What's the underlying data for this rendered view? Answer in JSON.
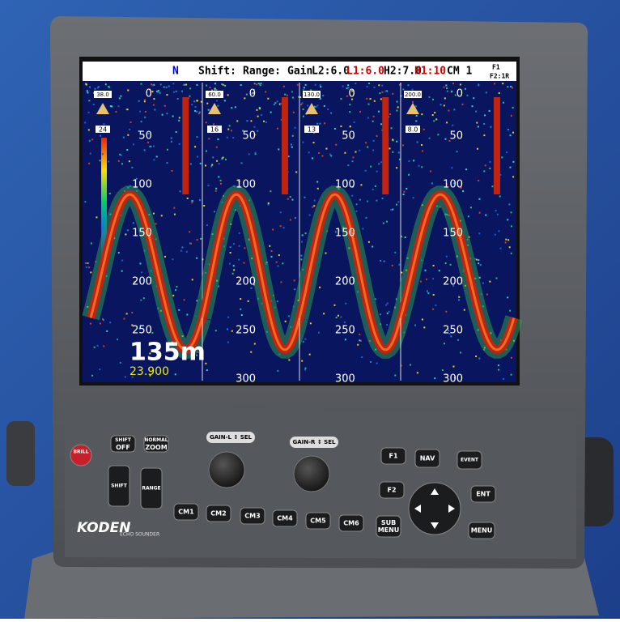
{
  "screen": {
    "header": {
      "mode": "N",
      "shift": "Shift:",
      "range": "Range:",
      "gain": "Gain",
      "l2": "L2:6.0",
      "l1": "L1:6.0",
      "h2": "H2:7.0",
      "h1": "H1:10",
      "cm": "CM 1",
      "f1": "F1",
      "f2": "F2:1R"
    },
    "panels": [
      {
        "range": "38.0",
        "speed": "24",
        "depths": [
          "0",
          "50",
          "100",
          "150",
          "200",
          "250"
        ]
      },
      {
        "range": "60.0",
        "speed": "16",
        "depths": [
          "0",
          "50",
          "100",
          "200",
          "250",
          "300"
        ]
      },
      {
        "range": "130.0",
        "speed": "13",
        "depths": [
          "0",
          "50",
          "100",
          "150",
          "200",
          "250",
          "300"
        ]
      },
      {
        "range": "200.0",
        "speed": "8.0",
        "depths": [
          "0",
          "50",
          "100",
          "150",
          "200",
          "250",
          "300"
        ]
      }
    ],
    "readout": {
      "depth": "135m",
      "position": "23.900"
    }
  },
  "controls": {
    "buttons": [
      [
        "BRILL"
      ],
      [
        "SHIFT",
        "OFF"
      ],
      [
        "NORMAL",
        "ZOOM"
      ],
      [
        "SHIFT"
      ],
      [
        "RANGE"
      ],
      [
        "CM1"
      ],
      [
        "CM2"
      ],
      [
        "CM3"
      ],
      [
        "CM4"
      ],
      [
        "CM5"
      ],
      [
        "CM6"
      ],
      [
        "F1"
      ],
      [
        "NAV"
      ],
      [
        "EVENT"
      ],
      [
        "F2"
      ],
      [
        "ENT"
      ],
      [
        "SUB",
        "MENU"
      ],
      [
        "MENU"
      ]
    ],
    "knobs": [
      "GAIN-L ↕ SEL",
      "GAIN-R ↕ SEL"
    ]
  },
  "brand": {
    "name": "KODEN",
    "product": "ECHO SOUNDER"
  }
}
